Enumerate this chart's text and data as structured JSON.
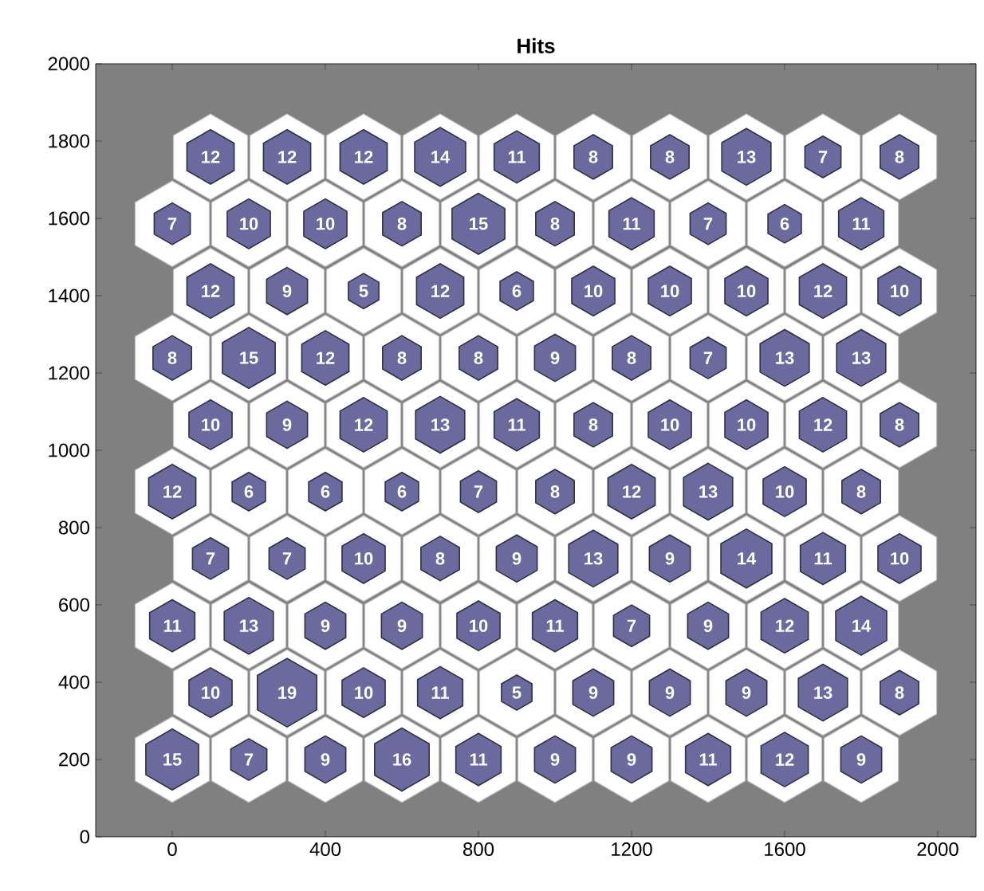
{
  "chart_data": {
    "type": "bubble",
    "title": "Hits",
    "color": "#6a6a9e",
    "xlim": [
      -200,
      2100
    ],
    "ylim": [
      0,
      2000
    ],
    "xticks": [
      0,
      400,
      800,
      1200,
      1600,
      2000
    ],
    "yticks": [
      0,
      200,
      400,
      600,
      800,
      1000,
      1200,
      1400,
      1600,
      1800,
      2000
    ],
    "x": [
      0,
      200,
      400,
      600,
      800,
      1000,
      1200,
      1400,
      1600,
      1800,
      100,
      300,
      500,
      700,
      900,
      1100,
      1300,
      1500,
      1700,
      1900,
      0,
      200,
      400,
      600,
      800,
      1000,
      1200,
      1400,
      1600,
      1800,
      100,
      300,
      500,
      700,
      900,
      1100,
      1300,
      1500,
      1700,
      1900,
      0,
      200,
      400,
      600,
      800,
      1000,
      1200,
      1400,
      1600,
      1800,
      100,
      300,
      500,
      700,
      900,
      1100,
      1300,
      1500,
      1700,
      1900,
      0,
      200,
      400,
      600,
      800,
      1000,
      1200,
      1400,
      1600,
      1800,
      100,
      300,
      500,
      700,
      900,
      1100,
      1300,
      1500,
      1700,
      1900,
      0,
      200,
      400,
      600,
      800,
      1000,
      1200,
      1400,
      1600,
      1800,
      100,
      300,
      500,
      700,
      900,
      1100,
      1300,
      1500,
      1700,
      1900
    ],
    "values": [
      200,
      200,
      200,
      200,
      200,
      200,
      200,
      200,
      200,
      200,
      373,
      373,
      373,
      373,
      373,
      373,
      373,
      373,
      373,
      373,
      546,
      546,
      546,
      546,
      546,
      546,
      546,
      546,
      546,
      546,
      720,
      720,
      720,
      720,
      720,
      720,
      720,
      720,
      720,
      720,
      893,
      893,
      893,
      893,
      893,
      893,
      893,
      893,
      893,
      893,
      1066,
      1066,
      1066,
      1066,
      1066,
      1066,
      1066,
      1066,
      1066,
      1066,
      1239,
      1239,
      1239,
      1239,
      1239,
      1239,
      1239,
      1239,
      1239,
      1239,
      1412,
      1412,
      1412,
      1412,
      1412,
      1412,
      1412,
      1412,
      1412,
      1412,
      1586,
      1586,
      1586,
      1586,
      1586,
      1586,
      1586,
      1586,
      1586,
      1586,
      1759,
      1759,
      1759,
      1759,
      1759,
      1759,
      1759,
      1759,
      1759,
      1759
    ],
    "sizes": [
      15,
      7,
      9,
      16,
      11,
      9,
      9,
      11,
      12,
      9,
      10,
      19,
      10,
      11,
      5,
      9,
      9,
      9,
      13,
      8,
      11,
      13,
      9,
      9,
      10,
      11,
      7,
      9,
      12,
      14,
      7,
      7,
      10,
      8,
      9,
      13,
      9,
      14,
      11,
      10,
      12,
      6,
      6,
      6,
      7,
      8,
      12,
      13,
      10,
      8,
      10,
      9,
      12,
      13,
      11,
      8,
      10,
      10,
      12,
      8,
      8,
      15,
      12,
      8,
      8,
      9,
      8,
      7,
      13,
      13,
      12,
      9,
      5,
      12,
      6,
      10,
      10,
      10,
      12,
      10,
      7,
      10,
      10,
      8,
      15,
      8,
      11,
      7,
      6,
      11,
      12,
      12,
      12,
      14,
      11,
      8,
      8,
      13,
      7,
      8
    ],
    "value_labels": [
      "15",
      "7",
      "9",
      "16",
      "11",
      "9",
      "9",
      "11",
      "12",
      "9",
      "10",
      "19",
      "10",
      "11",
      "5",
      "9",
      "9",
      "9",
      "13",
      "8",
      "11",
      "13",
      "9",
      "9",
      "10",
      "11",
      "7",
      "9",
      "12",
      "14",
      "7",
      "7",
      "10",
      "8",
      "9",
      "13",
      "9",
      "14",
      "11",
      "10",
      "12",
      "6",
      "6",
      "6",
      "7",
      "8",
      "12",
      "13",
      "10",
      "8",
      "10",
      "9",
      "12",
      "13",
      "11",
      "8",
      "10",
      "10",
      "12",
      "8",
      "8",
      "15",
      "12",
      "8",
      "8",
      "9",
      "8",
      "7",
      "13",
      "13",
      "12",
      "9",
      "5",
      "12",
      "6",
      "10",
      "10",
      "10",
      "12",
      "10",
      "7",
      "10",
      "10",
      "8",
      "15",
      "8",
      "11",
      "7",
      "6",
      "11",
      "12",
      "12",
      "12",
      "14",
      "11",
      "8",
      "8",
      "13",
      "7",
      "8"
    ]
  }
}
